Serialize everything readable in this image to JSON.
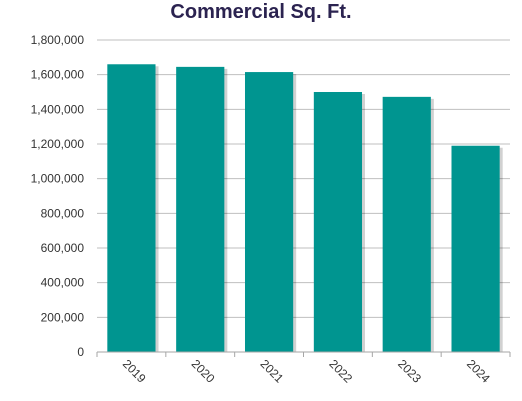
{
  "chart_data": {
    "type": "bar",
    "title": "Commercial Sq. Ft.",
    "xlabel": "",
    "ylabel": "",
    "categories": [
      "2019",
      "2020",
      "2021",
      "2022",
      "2023",
      "2024"
    ],
    "values": [
      1660000,
      1645000,
      1615000,
      1500000,
      1472000,
      1190000
    ],
    "ylim": [
      0,
      1800000
    ],
    "y_ticks": [
      0,
      200000,
      400000,
      600000,
      800000,
      1000000,
      1200000,
      1400000,
      1600000,
      1800000
    ],
    "y_tick_labels": [
      "0",
      "200,000",
      "400,000",
      "600,000",
      "800,000",
      "1,000,000",
      "1,200,000",
      "1,400,000",
      "1,600,000",
      "1,800,000"
    ],
    "grid": true,
    "legend": "none",
    "colors": {
      "bar": "#009590",
      "title": "#2b2350",
      "text": "#333333",
      "grid": "#bfbfbf",
      "axis": "#a6a6a6"
    }
  }
}
